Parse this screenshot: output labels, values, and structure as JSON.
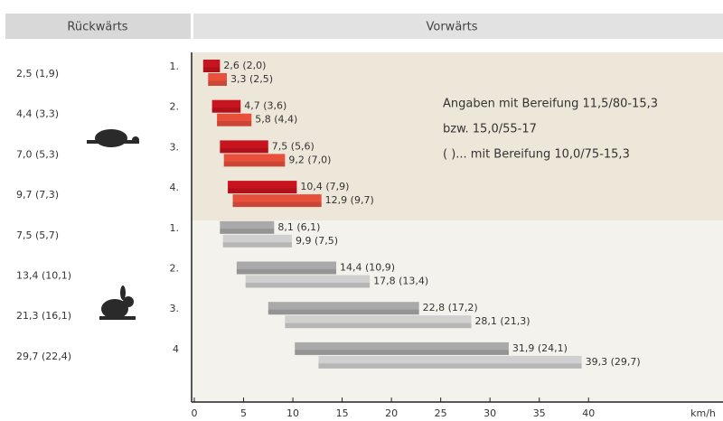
{
  "chart_data": {
    "type": "range_bar",
    "header_left": "Rückwärts",
    "header_right": "Vorwärts",
    "categories": [
      "1.",
      "2.",
      "3.",
      "4.",
      "1.",
      "2.",
      "3.",
      "4"
    ],
    "reverse_speeds": [
      "2,5 (1,9)",
      "4,4 (3,3)",
      "7,0 (5,3)",
      "9,7 (7,3)",
      "7,5 (5,7)",
      "13,4 (10,1)",
      "21,3 (16,1)",
      "29,7 (22,4)"
    ],
    "annotation": [
      "Angaben mit Bereifung 11,5/80-15,3",
      "bzw. 15,0/55-17",
      "( )... mit Bereifung 10,0/75-15,3"
    ],
    "series": [
      {
        "starts": [
          0.9,
          1.8,
          2.6,
          3.4,
          2.6,
          4.3,
          7.5,
          10.2
        ],
        "values": [
          2.6,
          4.7,
          7.5,
          10.4,
          8.1,
          14.4,
          22.8,
          31.9
        ],
        "value_labels": [
          "2,6 (2,0)",
          "4,7 (3,6)",
          "7,5 (5,6)",
          "10,4 (7,9)",
          "8,1 (6,1)",
          "14,4 (10,9)",
          "22,8 (17,2)",
          "31,9 (24,1)"
        ],
        "colors": [
          "#c8141e",
          "#c8141e",
          "#c8141e",
          "#c8141e",
          "#a9a9a9",
          "#a9a9a9",
          "#a9a9a9",
          "#a9a9a9"
        ]
      },
      {
        "starts": [
          1.4,
          2.3,
          3.0,
          3.9,
          2.9,
          5.2,
          9.2,
          12.6
        ],
        "values": [
          3.3,
          5.8,
          9.2,
          12.9,
          9.9,
          17.8,
          28.1,
          39.3
        ],
        "value_labels": [
          "3,3 (2,5)",
          "5,8 (4,4)",
          "9,2 (7,0)",
          "12,9 (9,7)",
          "9,9 (7,5)",
          "17,8 (13,4)",
          "28,1 (21,3)",
          "39,3 (29,7)"
        ],
        "colors": [
          "#e8503c",
          "#e8503c",
          "#e8503c",
          "#e8503c",
          "#d0d0d0",
          "#d0d0d0",
          "#d0d0d0",
          "#d0d0d0"
        ]
      }
    ],
    "xlim": [
      0,
      53
    ],
    "xticks": [
      0,
      5,
      10,
      15,
      20,
      25,
      30,
      35,
      40
    ],
    "xlabel": "km/h"
  }
}
